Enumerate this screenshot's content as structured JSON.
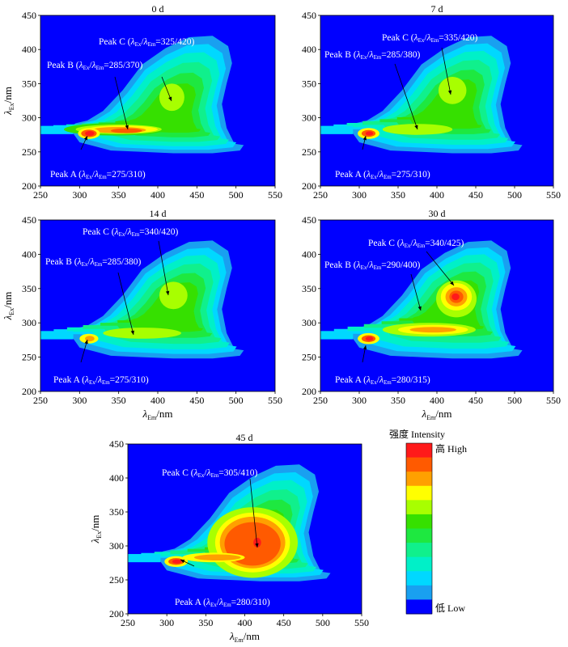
{
  "chart_data": [
    {
      "type": "heatmap",
      "title": "0 d",
      "xlim": [
        250,
        550
      ],
      "ylim": [
        200,
        450
      ],
      "xticks": [
        "250",
        "300",
        "350",
        "400",
        "450",
        "500",
        "550"
      ],
      "yticks": [
        "200",
        "250",
        "300",
        "350",
        "400",
        "450"
      ],
      "ylabel_main": "λ",
      "ylabel_sub": "Ex",
      "ylabel_unit": "/nm",
      "peaks": [
        {
          "label": "Peak A",
          "ex": 275,
          "em": 310,
          "text_pre": "Peak A (",
          "s1": "Ex",
          "s2": "Em",
          "text_post": "=275/310)"
        },
        {
          "label": "Peak B",
          "ex": 285,
          "em": 370,
          "text_pre": "Peak B (",
          "s1": "Ex",
          "s2": "Em",
          "text_post": "=285/370)"
        },
        {
          "label": "Peak C",
          "ex": 325,
          "em": 420,
          "text_pre": "Peak C (",
          "s1": "Ex",
          "s2": "Em",
          "text_post": "=325/420)"
        }
      ]
    },
    {
      "type": "heatmap",
      "title": "7 d",
      "xlim": [
        250,
        550
      ],
      "ylim": [
        200,
        450
      ],
      "xticks": [
        "250",
        "300",
        "350",
        "400",
        "450",
        "500",
        "550"
      ],
      "yticks": [
        "200",
        "250",
        "300",
        "350",
        "400",
        "450"
      ],
      "peaks": [
        {
          "label": "Peak A",
          "ex": 275,
          "em": 310,
          "text_pre": "Peak A (",
          "s1": "Ex",
          "s2": "Em",
          "text_post": "=275/310)"
        },
        {
          "label": "Peak B",
          "ex": 285,
          "em": 380,
          "text_pre": "Peak B (",
          "s1": "Ex",
          "s2": "Em",
          "text_post": "=285/380)"
        },
        {
          "label": "Peak C",
          "ex": 335,
          "em": 420,
          "text_pre": "Peak C (",
          "s1": "Ex",
          "s2": "Em",
          "text_post": "=335/420)"
        }
      ]
    },
    {
      "type": "heatmap",
      "title": "14 d",
      "xlim": [
        250,
        550
      ],
      "ylim": [
        200,
        450
      ],
      "xticks": [
        "250",
        "300",
        "350",
        "400",
        "450",
        "500",
        "550"
      ],
      "yticks": [
        "200",
        "250",
        "300",
        "350",
        "400",
        "450"
      ],
      "ylabel_main": "λ",
      "ylabel_sub": "Ex",
      "ylabel_unit": "/nm",
      "xlabel_main": "λ",
      "xlabel_sub": "Em",
      "xlabel_unit": "/nm",
      "peaks": [
        {
          "label": "Peak A",
          "ex": 275,
          "em": 310,
          "text_pre": "Peak A (",
          "s1": "Ex",
          "s2": "Em",
          "text_post": "=275/310)"
        },
        {
          "label": "Peak B",
          "ex": 285,
          "em": 380,
          "text_pre": "Peak B (",
          "s1": "Ex",
          "s2": "Em",
          "text_post": "=285/380)"
        },
        {
          "label": "Peak C",
          "ex": 340,
          "em": 420,
          "text_pre": "Peak C (",
          "s1": "Ex",
          "s2": "Em",
          "text_post": "=340/420)"
        }
      ]
    },
    {
      "type": "heatmap",
      "title": "30 d",
      "xlim": [
        250,
        550
      ],
      "ylim": [
        200,
        450
      ],
      "xticks": [
        "250",
        "300",
        "350",
        "400",
        "450",
        "500",
        "550"
      ],
      "yticks": [
        "200",
        "250",
        "300",
        "350",
        "400",
        "450"
      ],
      "xlabel_main": "λ",
      "xlabel_sub": "Em",
      "xlabel_unit": "/nm",
      "peaks": [
        {
          "label": "Peak A",
          "ex": 280,
          "em": 315,
          "text_pre": "Peak A (",
          "s1": "Ex",
          "s2": "Em",
          "text_post": "=280/315)"
        },
        {
          "label": "Peak B",
          "ex": 290,
          "em": 400,
          "text_pre": "Peak B (",
          "s1": "Ex",
          "s2": "Em",
          "text_post": "=290/400)"
        },
        {
          "label": "Peak C",
          "ex": 340,
          "em": 425,
          "text_pre": "Peak C (",
          "s1": "Ex",
          "s2": "Em",
          "text_post": "=340/425)"
        }
      ]
    },
    {
      "type": "heatmap",
      "title": "45 d",
      "xlim": [
        250,
        550
      ],
      "ylim": [
        200,
        450
      ],
      "xticks": [
        "250",
        "300",
        "350",
        "400",
        "450",
        "500",
        "550"
      ],
      "yticks": [
        "200",
        "250",
        "300",
        "350",
        "400",
        "450"
      ],
      "ylabel_main": "λ",
      "ylabel_sub": "Ex",
      "ylabel_unit": "/nm",
      "xlabel_main": "λ",
      "xlabel_sub": "Em",
      "xlabel_unit": "/nm",
      "peaks": [
        {
          "label": "Peak A",
          "ex": 280,
          "em": 310,
          "text_pre": "Peak A (",
          "s1": "Ex",
          "s2": "Em",
          "text_post": "=280/310)"
        },
        {
          "label": "Peak C",
          "ex": 305,
          "em": 410,
          "text_pre": "Peak C (",
          "s1": "Ex",
          "s2": "Em",
          "text_post": "=305/410)"
        }
      ]
    }
  ],
  "legend": {
    "title": "强度 Intensity",
    "high_label": "高 High",
    "low_label": "低 Low",
    "colors": [
      "#ff1a1a",
      "#ff5a00",
      "#ffa000",
      "#ffff00",
      "#a8ff00",
      "#36e000",
      "#1ee840",
      "#10f08c",
      "#00f0c8",
      "#00d8ff",
      "#19a0f0",
      "#0000ff"
    ]
  },
  "colors": {
    "background": "#0000ff"
  }
}
